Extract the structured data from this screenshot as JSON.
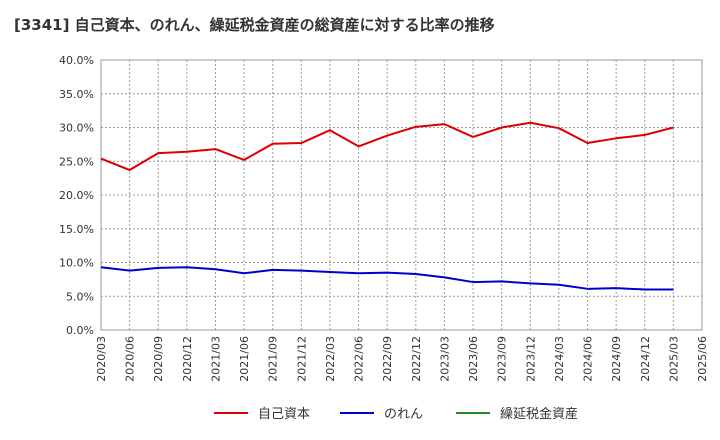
{
  "chart_data": {
    "type": "line",
    "title": "[3341]  自己資本、のれん、繰延税金資産の総資産に対する比率の推移",
    "xlabel": "",
    "ylabel": "",
    "ylim": [
      0,
      40
    ],
    "y_ticks": [
      "0.0%",
      "5.0%",
      "10.0%",
      "15.0%",
      "20.0%",
      "25.0%",
      "30.0%",
      "35.0%",
      "40.0%"
    ],
    "categories": [
      "2020/03",
      "2020/06",
      "2020/09",
      "2020/12",
      "2021/03",
      "2021/06",
      "2021/09",
      "2021/12",
      "2022/03",
      "2022/06",
      "2022/09",
      "2022/12",
      "2023/03",
      "2023/06",
      "2023/09",
      "2023/12",
      "2024/03",
      "2024/06",
      "2024/09",
      "2024/12",
      "2025/03",
      "2025/06"
    ],
    "grid": true,
    "legend_position": "bottom",
    "series": [
      {
        "name": "自己資本",
        "color": "#dd0000",
        "values": [
          25.4,
          23.7,
          26.2,
          26.4,
          26.8,
          25.2,
          27.6,
          27.7,
          29.6,
          27.2,
          28.8,
          30.1,
          30.5,
          28.6,
          30.0,
          30.7,
          29.9,
          27.7,
          28.4,
          28.9,
          30.0,
          null
        ]
      },
      {
        "name": "のれん",
        "color": "#0000cc",
        "values": [
          9.3,
          8.8,
          9.2,
          9.3,
          9.0,
          8.4,
          8.9,
          8.8,
          8.6,
          8.4,
          8.5,
          8.3,
          7.8,
          7.1,
          7.2,
          6.9,
          6.7,
          6.1,
          6.2,
          6.0,
          6.0,
          null
        ]
      },
      {
        "name": "繰延税金資産",
        "color": "#228b22",
        "values": [
          null,
          null,
          null,
          null,
          null,
          null,
          null,
          null,
          null,
          null,
          null,
          null,
          null,
          null,
          null,
          null,
          null,
          null,
          null,
          null,
          null,
          null
        ]
      }
    ]
  }
}
